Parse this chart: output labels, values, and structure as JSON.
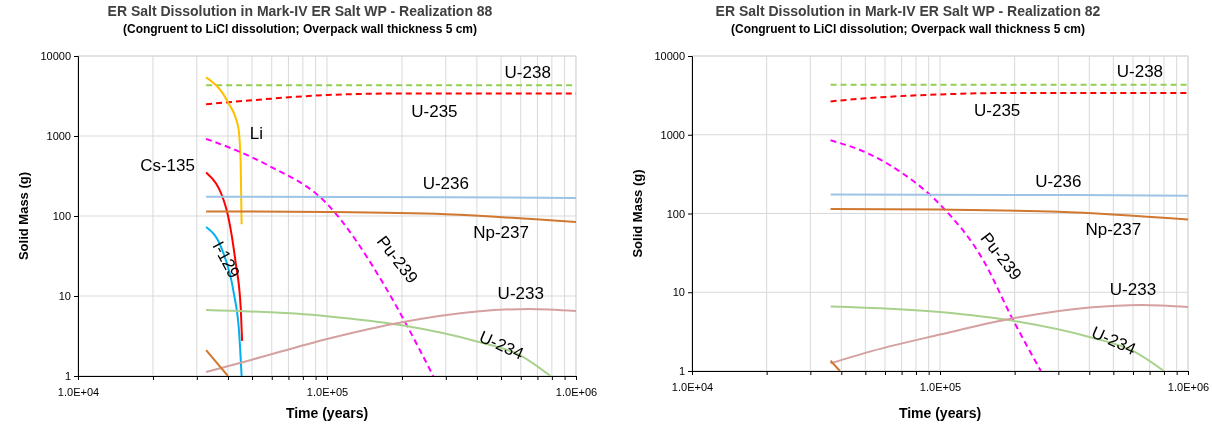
{
  "chart_data": [
    {
      "type": "line",
      "title": "ER Salt Dissolution in Mark-IV ER Salt WP - Realization 88",
      "subtitle": "(Congruent to LiCl dissolution; Overpack wall thickness 5 cm)",
      "xlabel": "Time (years)",
      "ylabel": "Solid Mass (g)",
      "log": "xy",
      "grid": true,
      "legend": false,
      "xlim": [
        10000,
        1000000
      ],
      "ylim": [
        1,
        10000
      ],
      "xticks": [
        {
          "value": 10000,
          "label": "1.0E+04"
        },
        {
          "value": 20000,
          "label": null
        },
        {
          "value": 30000,
          "label": null
        },
        {
          "value": 40000,
          "label": null
        },
        {
          "value": 50000,
          "label": null
        },
        {
          "value": 60000,
          "label": null
        },
        {
          "value": 70000,
          "label": null
        },
        {
          "value": 80000,
          "label": null
        },
        {
          "value": 90000,
          "label": null
        },
        {
          "value": 100000,
          "label": "1.0E+05"
        },
        {
          "value": 200000,
          "label": null
        },
        {
          "value": 300000,
          "label": null
        },
        {
          "value": 400000,
          "label": null
        },
        {
          "value": 500000,
          "label": null
        },
        {
          "value": 600000,
          "label": null
        },
        {
          "value": 700000,
          "label": null
        },
        {
          "value": 800000,
          "label": null
        },
        {
          "value": 900000,
          "label": null
        },
        {
          "value": 1000000,
          "label": "1.0E+06"
        }
      ],
      "yticks": [
        1,
        10,
        100,
        1000,
        10000
      ],
      "series": [
        {
          "name": "U-238",
          "color": "#92d050",
          "line_style": "dashed",
          "x": [
            32700,
            100000,
            1000000
          ],
          "values": [
            4300,
            4300,
            4300
          ]
        },
        {
          "name": "U-235",
          "color": "#ff0000",
          "line_style": "dashed",
          "x": [
            32700,
            50000,
            100000,
            200000,
            1000000
          ],
          "values": [
            2500,
            2800,
            3250,
            3400,
            3400
          ]
        },
        {
          "name": "Li",
          "color": "#ffc000",
          "line_style": "solid",
          "x": [
            32700,
            40000,
            44000,
            45000,
            45400
          ],
          "values": [
            5400,
            2650,
            1290,
            475,
            79
          ]
        },
        {
          "name": "Pu-239",
          "color": "#ff00ff",
          "line_style": "dashed",
          "x": [
            32700,
            43000,
            58000,
            100000,
            169000,
            210000,
            267000
          ],
          "values": [
            920,
            665,
            430,
            142,
            14,
            4.2,
            1
          ]
        },
        {
          "name": "Cs-135",
          "color": "#ff0000",
          "line_style": "solid",
          "x": [
            32700,
            39300,
            42900,
            45000,
            45600
          ],
          "values": [
            350,
            127,
            27,
            7.3,
            2.75
          ]
        },
        {
          "name": "I-129",
          "color": "#00b0f0",
          "line_style": "solid",
          "x": [
            32700,
            37900,
            42200,
            44400,
            45400
          ],
          "values": [
            73,
            38,
            11,
            3.4,
            1
          ]
        },
        {
          "name": "U-236",
          "color": "#9dc3e6",
          "line_style": "solid",
          "x": [
            32700,
            300000,
            1000000
          ],
          "values": [
            174,
            172,
            168
          ]
        },
        {
          "name": "Np-237",
          "color": "#d0782f",
          "line_style": "solid",
          "x": [
            32700,
            100000,
            300000,
            1000000
          ],
          "values": [
            114,
            112,
            105,
            84
          ]
        },
        {
          "name": "U-234",
          "color": "#a9d18e",
          "line_style": "solid",
          "x": [
            32700,
            100000,
            200000,
            400000,
            600000,
            790000
          ],
          "values": [
            6.7,
            5.6,
            4.3,
            2.7,
            1.8,
            1
          ]
        },
        {
          "name": "U-233",
          "color": "#d4a0a0",
          "line_style": "solid",
          "x": [
            32700,
            50000,
            100000,
            200000,
            400000,
            650000,
            1000000
          ],
          "values": [
            1.12,
            1.6,
            2.9,
            4.7,
            6.4,
            6.9,
            6.5
          ]
        },
        {
          "color": "#d0782f",
          "line_style": "solid",
          "x": [
            32700,
            40000
          ],
          "values": [
            2.1,
            1
          ]
        }
      ]
    },
    {
      "type": "line",
      "title": "ER Salt Dissolution in Mark-IV ER Salt WP - Realization 82",
      "subtitle": "(Congruent to LiCl dissolution; Overpack wall thickness 5 cm)",
      "xlabel": "Time (years)",
      "ylabel": "Solid Mass (g)",
      "log": "xy",
      "grid": true,
      "legend": false,
      "xlim": [
        10000,
        1000000
      ],
      "ylim": [
        1,
        10000
      ],
      "xticks": [
        {
          "value": 10000,
          "label": "1.0E+04"
        },
        {
          "value": 20000,
          "label": null
        },
        {
          "value": 30000,
          "label": null
        },
        {
          "value": 40000,
          "label": null
        },
        {
          "value": 50000,
          "label": null
        },
        {
          "value": 60000,
          "label": null
        },
        {
          "value": 70000,
          "label": null
        },
        {
          "value": 80000,
          "label": null
        },
        {
          "value": 90000,
          "label": null
        },
        {
          "value": 100000,
          "label": "1.0E+05"
        },
        {
          "value": 200000,
          "label": null
        },
        {
          "value": 300000,
          "label": null
        },
        {
          "value": 400000,
          "label": null
        },
        {
          "value": 500000,
          "label": null
        },
        {
          "value": 600000,
          "label": null
        },
        {
          "value": 700000,
          "label": null
        },
        {
          "value": 800000,
          "label": null
        },
        {
          "value": 900000,
          "label": null
        },
        {
          "value": 1000000,
          "label": "1.0E+06"
        }
      ],
      "yticks": [
        1,
        10,
        100,
        1000,
        10000
      ],
      "series": [
        {
          "name": "U-238",
          "color": "#92d050",
          "line_style": "dashed",
          "x": [
            36200,
            100000,
            1000000
          ],
          "values": [
            4300,
            4300,
            4300
          ]
        },
        {
          "name": "U-235",
          "color": "#ff0000",
          "line_style": "dashed",
          "x": [
            36200,
            50000,
            100000,
            200000,
            1000000
          ],
          "values": [
            2650,
            2900,
            3250,
            3400,
            3400
          ]
        },
        {
          "name": "Pu-239",
          "color": "#ff00ff",
          "line_style": "dashed",
          "x": [
            36200,
            50000,
            70000,
            100000,
            150000,
            194000,
            255000
          ],
          "values": [
            850,
            600,
            330,
            130,
            25,
            4.9,
            1
          ]
        },
        {
          "name": "U-236",
          "color": "#9dc3e6",
          "line_style": "solid",
          "x": [
            36200,
            300000,
            1000000
          ],
          "values": [
            174,
            172,
            168
          ]
        },
        {
          "name": "Np-237",
          "color": "#d0782f",
          "line_style": "solid",
          "x": [
            36200,
            100000,
            300000,
            1000000
          ],
          "values": [
            114,
            112,
            105,
            84
          ]
        },
        {
          "name": "U-234",
          "color": "#a9d18e",
          "line_style": "solid",
          "x": [
            36200,
            100000,
            200000,
            400000,
            600000,
            800000
          ],
          "values": [
            6.6,
            5.6,
            4.3,
            2.7,
            1.8,
            1
          ]
        },
        {
          "name": "U-233",
          "color": "#d4a0a0",
          "line_style": "solid",
          "x": [
            36200,
            50000,
            100000,
            200000,
            400000,
            650000,
            1000000
          ],
          "values": [
            1.25,
            1.7,
            2.9,
            4.7,
            6.4,
            6.9,
            6.5
          ]
        },
        {
          "color": "#d0782f",
          "line_style": "solid",
          "x": [
            36200,
            39500
          ],
          "values": [
            1.35,
            1
          ]
        }
      ]
    }
  ]
}
